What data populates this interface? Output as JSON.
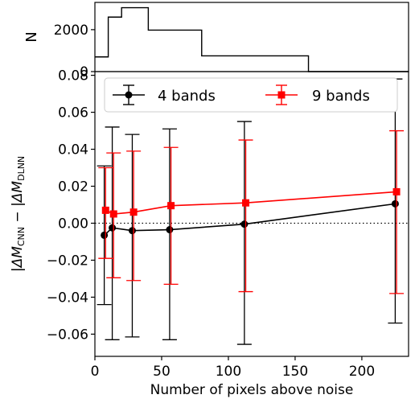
{
  "chart_data": [
    {
      "type": "histogram",
      "ylabel": "N",
      "xlim": [
        0,
        235
      ],
      "ylim": [
        0,
        3300
      ],
      "yticks": [
        0,
        2000
      ],
      "ytick_labels": [
        "0",
        "2000"
      ],
      "bins": [
        {
          "x0": 0,
          "x1": 10,
          "value": 700
        },
        {
          "x0": 10,
          "x1": 20,
          "value": 2600
        },
        {
          "x0": 20,
          "x1": 40,
          "value": 3050
        },
        {
          "x0": 40,
          "x1": 80,
          "value": 1980
        },
        {
          "x0": 80,
          "x1": 160,
          "value": 750
        },
        {
          "x0": 160,
          "x1": 235,
          "value": 0
        }
      ],
      "color": "#000000"
    },
    {
      "type": "line",
      "xlabel": "Number of pixels above noise",
      "ylabel_parts": {
        "main": "|ΔM",
        "sub1": "CNN",
        "mid": " − |ΔM",
        "sub2": "DLNN"
      },
      "xlim": [
        0,
        235
      ],
      "ylim": [
        -0.072,
        0.082
      ],
      "xticks": [
        0,
        50,
        100,
        150,
        200
      ],
      "xtick_labels": [
        "0",
        "50",
        "100",
        "150",
        "200"
      ],
      "yticks": [
        -0.06,
        -0.04,
        -0.02,
        0.0,
        0.02,
        0.04,
        0.06,
        0.08
      ],
      "ytick_labels": [
        "−0.06",
        "−0.04",
        "−0.02",
        "0.00",
        "0.02",
        "0.04",
        "0.06",
        "0.08"
      ],
      "reference_line": {
        "y": 0,
        "style": "dotted",
        "color": "#000000"
      },
      "legend": {
        "position": "top",
        "entries": [
          "4 bands",
          "9 bands"
        ]
      },
      "series": [
        {
          "name": "4 bands",
          "color": "#000000",
          "marker": "circle",
          "x": [
            7,
            13,
            28,
            56,
            112,
            225
          ],
          "y": [
            -0.0065,
            -0.0025,
            -0.004,
            -0.0035,
            -0.0005,
            0.0105
          ],
          "err_low": [
            -0.044,
            -0.063,
            -0.0615,
            -0.063,
            -0.0655,
            -0.054
          ],
          "err_high": [
            0.031,
            0.052,
            0.048,
            0.051,
            0.055,
            0.078
          ]
        },
        {
          "name": "9 bands",
          "color": "#ff0000",
          "marker": "square",
          "x": [
            8,
            14,
            29,
            57,
            113,
            226
          ],
          "y": [
            0.007,
            0.005,
            0.006,
            0.0095,
            0.011,
            0.017
          ],
          "err_low": [
            -0.019,
            -0.0295,
            -0.031,
            -0.033,
            -0.037,
            -0.038
          ],
          "err_high": [
            0.03,
            0.038,
            0.039,
            0.041,
            0.045,
            0.05
          ]
        }
      ]
    }
  ]
}
